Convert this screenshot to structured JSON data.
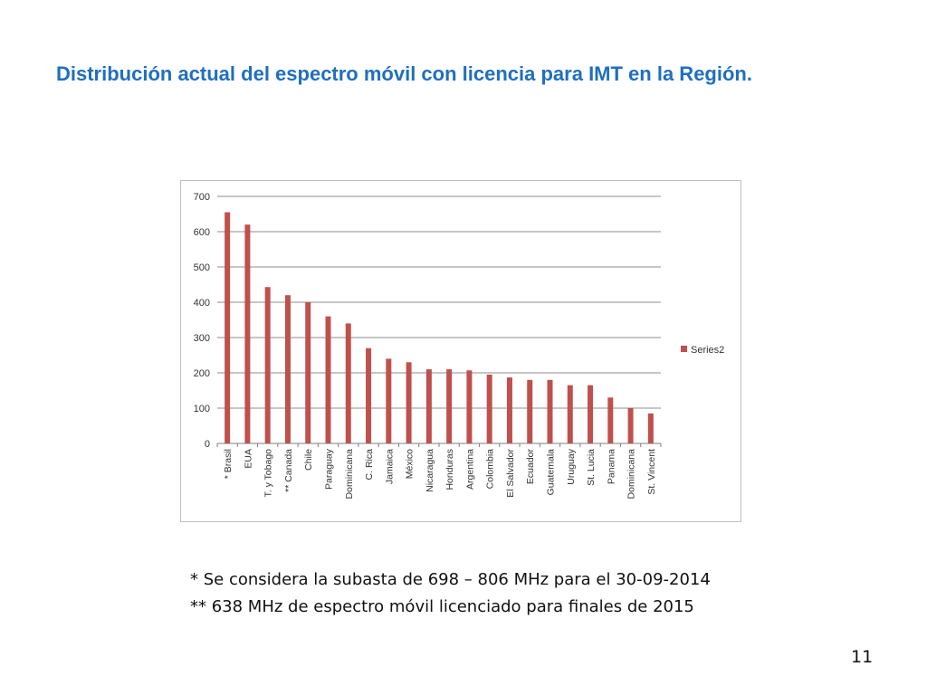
{
  "slide": {
    "title": "Distribución actual del espectro móvil con licencia para IMT en la Región.",
    "footnotes": [
      "*  Se considera la subasta de 698 – 806 MHz para el 30-09-2014",
      "** 638 MHz de espectro móvil licenciado para finales de 2015"
    ],
    "page_number": "11"
  },
  "chart_data": {
    "type": "bar",
    "title": "",
    "xlabel": "",
    "ylabel": "",
    "ylim": [
      0,
      700
    ],
    "yticks": [
      0,
      100,
      200,
      300,
      400,
      500,
      600,
      700
    ],
    "grid": true,
    "legend_position": "right",
    "bar_color": "#c0504d",
    "categories": [
      "* Brasil",
      "EUA",
      "T. y Tobago",
      "** Canada",
      "Chile",
      "Paraguay",
      "Dominicana",
      "C. Rica",
      "Jamaica",
      "México",
      "Nicaragua",
      "Honduras",
      "Argentina",
      "Colombia",
      "El Salvador",
      "Ecuador",
      "Guatemala",
      "Uruguay",
      "St. Lucia",
      "Panama",
      "Dominicana",
      "St. Vincent"
    ],
    "series": [
      {
        "name": "Series2",
        "values": [
          655,
          620,
          443,
          420,
          400,
          360,
          340,
          270,
          240,
          230,
          210,
          210,
          207,
          195,
          187,
          180,
          180,
          165,
          165,
          130,
          100,
          85
        ]
      }
    ]
  }
}
